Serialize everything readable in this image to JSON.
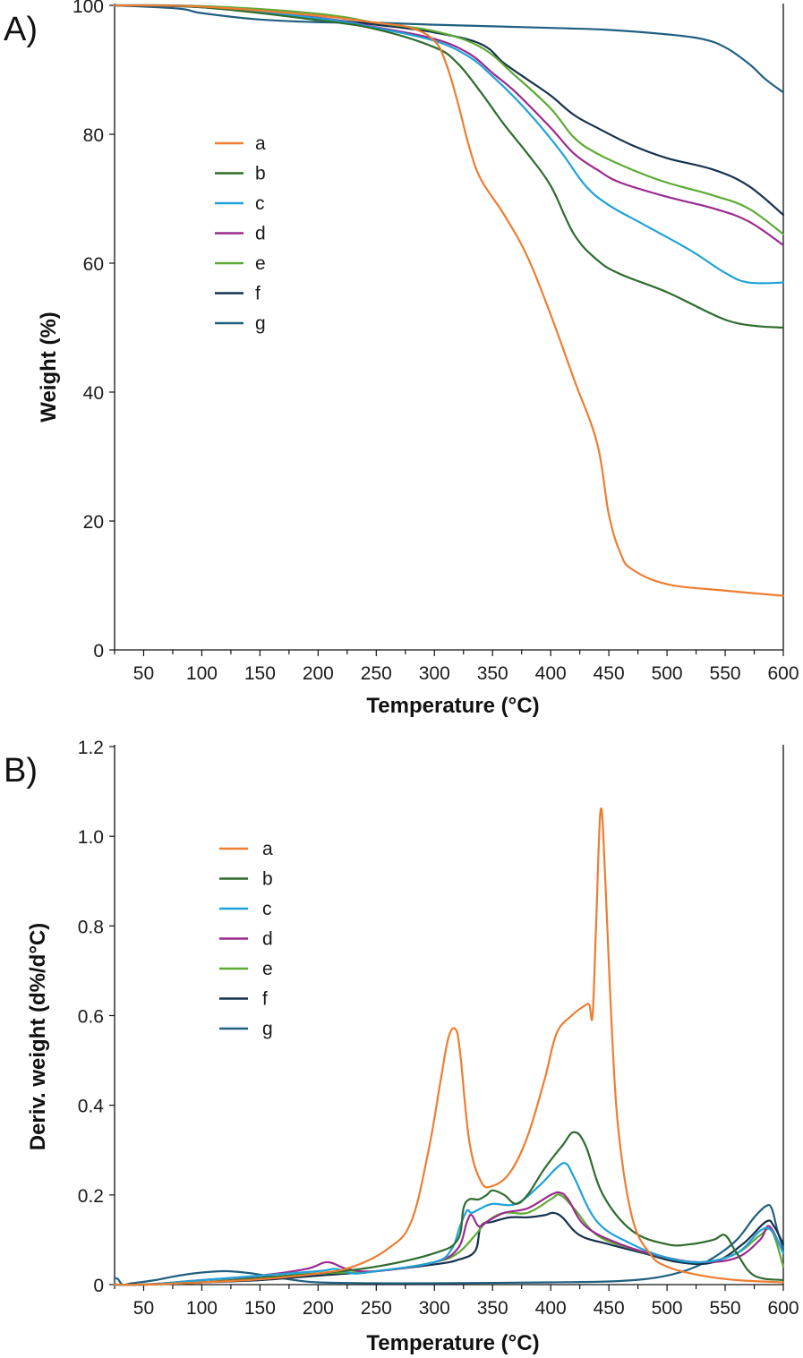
{
  "colors": {
    "a": "#ED7D31",
    "b": "#2E6B2E",
    "c": "#1FA2D8",
    "d": "#9C2A8E",
    "e": "#5DAA35",
    "f": "#16324F",
    "g": "#1F5F80"
  },
  "chart_data": [
    {
      "panel": "A)",
      "type": "line",
      "xlabel": "Temperature (°C)",
      "ylabel": "Weight (%)",
      "xlim": [
        25,
        600
      ],
      "ylim": [
        0,
        100
      ],
      "xticks": [
        50,
        100,
        150,
        200,
        250,
        300,
        350,
        400,
        450,
        500,
        550,
        600
      ],
      "yticks": [
        0,
        20,
        40,
        60,
        80,
        100
      ],
      "xtick_labels": [
        "50",
        "100",
        "150",
        "200",
        "250",
        "300",
        "350",
        "400",
        "450",
        "500",
        "550",
        "600"
      ],
      "ytick_labels": [
        "0",
        "20",
        "40",
        "60",
        "80",
        "100"
      ],
      "legend_position": "upper-left",
      "series": [
        {
          "name": "a",
          "x": [
            25,
            100,
            200,
            250,
            280,
            300,
            310,
            320,
            330,
            340,
            360,
            380,
            400,
            420,
            440,
            450,
            460,
            470,
            500,
            550,
            600
          ],
          "y": [
            100,
            99.8,
            98.4,
            97.3,
            96.5,
            94.5,
            91,
            85,
            78,
            73,
            67.5,
            61,
            52,
            42,
            32,
            21,
            15,
            12.5,
            10.2,
            9.2,
            8.4
          ]
        },
        {
          "name": "b",
          "x": [
            25,
            100,
            200,
            250,
            300,
            320,
            340,
            360,
            380,
            400,
            420,
            440,
            460,
            500,
            540,
            560,
            580,
            600
          ],
          "y": [
            100,
            99.7,
            97.7,
            96.3,
            93.5,
            91,
            86.5,
            81.5,
            77,
            72,
            64.5,
            60.5,
            58.3,
            55.5,
            52,
            50.7,
            50.2,
            50
          ]
        },
        {
          "name": "c",
          "x": [
            25,
            100,
            200,
            250,
            300,
            330,
            350,
            370,
            390,
            410,
            430,
            450,
            480,
            520,
            550,
            570,
            600
          ],
          "y": [
            100,
            99.8,
            98,
            96.5,
            94.5,
            92,
            89,
            85.5,
            81.5,
            77,
            72,
            69,
            66,
            62,
            58.5,
            57,
            57
          ]
        },
        {
          "name": "d",
          "x": [
            25,
            100,
            200,
            250,
            300,
            330,
            350,
            370,
            400,
            420,
            440,
            460,
            500,
            540,
            570,
            600
          ],
          "y": [
            100,
            99.8,
            98.1,
            96.6,
            94.8,
            92.5,
            89.5,
            86.5,
            81,
            77,
            74.5,
            72.5,
            70.3,
            68.5,
            66.5,
            62.8
          ]
        },
        {
          "name": "e",
          "x": [
            25,
            100,
            200,
            250,
            300,
            340,
            370,
            400,
            420,
            440,
            470,
            500,
            540,
            570,
            600
          ],
          "y": [
            100,
            99.9,
            98.7,
            97.3,
            96,
            93.5,
            89,
            84,
            79.5,
            77,
            74.5,
            72.5,
            70.5,
            68.5,
            64.5
          ]
        },
        {
          "name": "f",
          "x": [
            25,
            100,
            200,
            250,
            300,
            340,
            360,
            380,
            400,
            420,
            440,
            470,
            500,
            540,
            570,
            600
          ],
          "y": [
            100,
            99.7,
            98,
            97,
            95.8,
            94,
            91,
            88.5,
            86,
            83,
            81,
            78.3,
            76.3,
            74.5,
            72,
            67.5
          ]
        },
        {
          "name": "g",
          "x": [
            25,
            80,
            100,
            150,
            200,
            250,
            300,
            400,
            450,
            500,
            530,
            550,
            570,
            585,
            600
          ],
          "y": [
            100,
            99.5,
            98.8,
            97.8,
            97.4,
            97.3,
            97,
            96.5,
            96.2,
            95.5,
            94.8,
            93.5,
            91,
            88.5,
            86.5
          ]
        }
      ]
    },
    {
      "panel": "B)",
      "type": "line",
      "xlabel": "Temperature (°C)",
      "ylabel": "Deriv. weight (d%/d°C)",
      "xlim": [
        25,
        600
      ],
      "ylim": [
        0,
        1.2
      ],
      "xticks": [
        50,
        100,
        150,
        200,
        250,
        300,
        350,
        400,
        450,
        500,
        550,
        600
      ],
      "yticks": [
        0,
        0.2,
        0.4,
        0.6,
        0.8,
        1.0,
        1.2
      ],
      "xtick_labels": [
        "50",
        "100",
        "150",
        "200",
        "250",
        "300",
        "350",
        "400",
        "450",
        "500",
        "550",
        "600"
      ],
      "ytick_labels": [
        "0",
        "0.2",
        "0.4",
        "0.6",
        "0.8",
        "1.0",
        "1.2"
      ],
      "legend_position": "upper-left",
      "series": [
        {
          "name": "a",
          "x": [
            25,
            50,
            100,
            150,
            200,
            230,
            260,
            280,
            295,
            305,
            312,
            318,
            322,
            330,
            340,
            350,
            365,
            380,
            395,
            405,
            418,
            428,
            433,
            436,
            439,
            443,
            447,
            452,
            458,
            470,
            485,
            500,
            530,
            560,
            600
          ],
          "y": [
            0.0,
            0.0,
            0.005,
            0.012,
            0.025,
            0.04,
            0.08,
            0.14,
            0.3,
            0.45,
            0.55,
            0.57,
            0.52,
            0.32,
            0.23,
            0.22,
            0.25,
            0.33,
            0.46,
            0.56,
            0.6,
            0.62,
            0.625,
            0.6,
            0.8,
            1.06,
            0.9,
            0.6,
            0.35,
            0.15,
            0.07,
            0.04,
            0.02,
            0.01,
            0.005
          ]
        },
        {
          "name": "b",
          "x": [
            25,
            50,
            100,
            150,
            200,
            250,
            300,
            320,
            325,
            330,
            338,
            345,
            350,
            360,
            370,
            380,
            395,
            410,
            420,
            430,
            445,
            470,
            500,
            520,
            540,
            550,
            560,
            575,
            600
          ],
          "y": [
            0.0,
            0.0,
            0.005,
            0.015,
            0.025,
            0.04,
            0.07,
            0.1,
            0.17,
            0.19,
            0.19,
            0.2,
            0.21,
            0.2,
            0.18,
            0.2,
            0.26,
            0.31,
            0.34,
            0.31,
            0.2,
            0.12,
            0.09,
            0.09,
            0.1,
            0.11,
            0.07,
            0.02,
            0.01
          ]
        },
        {
          "name": "c",
          "x": [
            25,
            50,
            100,
            150,
            200,
            215,
            230,
            250,
            300,
            315,
            322,
            328,
            332,
            340,
            350,
            370,
            390,
            405,
            413,
            420,
            440,
            470,
            500,
            530,
            560,
            580,
            590,
            600
          ],
          "y": [
            0.0,
            0.0,
            0.01,
            0.02,
            0.03,
            0.035,
            0.025,
            0.03,
            0.05,
            0.08,
            0.13,
            0.165,
            0.16,
            0.17,
            0.18,
            0.18,
            0.22,
            0.26,
            0.27,
            0.24,
            0.14,
            0.09,
            0.06,
            0.05,
            0.07,
            0.12,
            0.12,
            0.07
          ]
        },
        {
          "name": "d",
          "x": [
            25,
            50,
            100,
            150,
            190,
            208,
            225,
            250,
            300,
            320,
            328,
            332,
            338,
            345,
            360,
            380,
            400,
            408,
            415,
            430,
            460,
            500,
            530,
            560,
            580,
            588,
            600
          ],
          "y": [
            0.0,
            0.0,
            0.01,
            0.02,
            0.035,
            0.05,
            0.035,
            0.03,
            0.05,
            0.08,
            0.14,
            0.155,
            0.13,
            0.14,
            0.16,
            0.17,
            0.2,
            0.205,
            0.19,
            0.13,
            0.09,
            0.06,
            0.05,
            0.06,
            0.1,
            0.13,
            0.07
          ]
        },
        {
          "name": "e",
          "x": [
            25,
            50,
            100,
            150,
            200,
            250,
            300,
            320,
            335,
            345,
            360,
            380,
            400,
            408,
            420,
            440,
            470,
            500,
            530,
            560,
            580,
            590,
            600
          ],
          "y": [
            0.0,
            0.0,
            0.005,
            0.015,
            0.025,
            0.03,
            0.05,
            0.07,
            0.11,
            0.14,
            0.16,
            0.16,
            0.19,
            0.2,
            0.17,
            0.11,
            0.08,
            0.06,
            0.05,
            0.07,
            0.11,
            0.12,
            0.04
          ]
        },
        {
          "name": "f",
          "x": [
            25,
            50,
            100,
            150,
            200,
            250,
            300,
            320,
            335,
            340,
            350,
            365,
            380,
            395,
            402,
            410,
            425,
            450,
            480,
            510,
            540,
            565,
            585,
            592,
            600
          ],
          "y": [
            0.0,
            0.0,
            0.005,
            0.01,
            0.02,
            0.03,
            0.045,
            0.055,
            0.075,
            0.13,
            0.14,
            0.15,
            0.15,
            0.155,
            0.16,
            0.15,
            0.11,
            0.09,
            0.07,
            0.05,
            0.05,
            0.09,
            0.14,
            0.13,
            0.09
          ]
        },
        {
          "name": "g",
          "x": [
            25,
            28,
            32,
            40,
            60,
            80,
            100,
            120,
            140,
            160,
            180,
            200,
            250,
            300,
            400,
            450,
            480,
            500,
            520,
            540,
            560,
            575,
            585,
            590,
            595,
            600
          ],
          "y": [
            0.015,
            0.012,
            0.0,
            0.003,
            0.01,
            0.02,
            0.027,
            0.03,
            0.026,
            0.018,
            0.01,
            0.005,
            0.003,
            0.003,
            0.005,
            0.007,
            0.012,
            0.02,
            0.035,
            0.06,
            0.1,
            0.15,
            0.175,
            0.17,
            0.12,
            0.08
          ]
        }
      ]
    }
  ]
}
